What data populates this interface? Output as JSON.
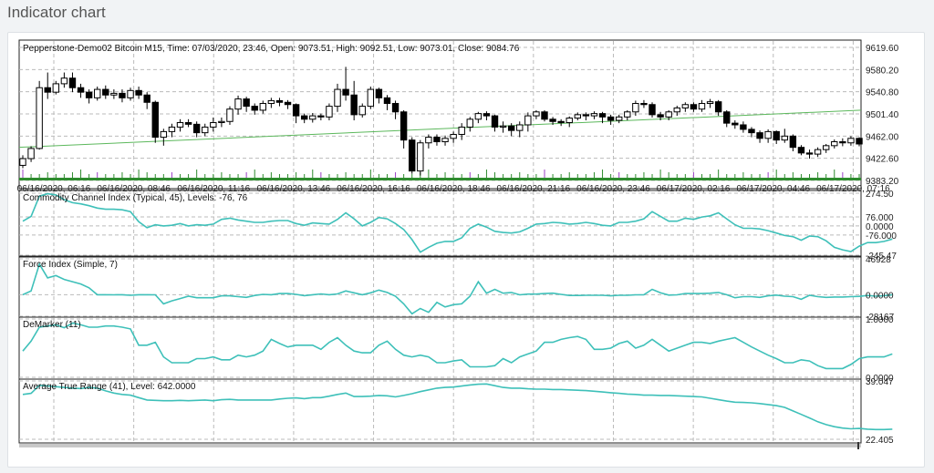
{
  "page_title": "Indicator chart",
  "chart_data": [
    {
      "type": "candlestick",
      "title": "Pepperstone-Demo02 Bitcoin M15, Time: 07/03/2020, 23:46, Open: 9073.51, High: 9092.51, Low: 9073.01, Close: 9084.76",
      "y_ticks": [
        "9619.60",
        "9580.20",
        "9540.80",
        "9501.40",
        "9462.00",
        "9422.60",
        "9383.20"
      ],
      "ylim": [
        9383.2,
        9619.6
      ],
      "x_tick_labels": [
        "06/16/2020, 06:16",
        "06/16/2020, 08:46",
        "06/16/2020, 11:16",
        "06/16/2020, 13:46",
        "06/16/2020, 16:16",
        "06/16/2020, 18:46",
        "06/16/2020, 21:16",
        "06/16/2020, 23:46",
        "06/17/2020, 02:16",
        "06/17/2020, 04:46",
        "06/17/2020, 07:16"
      ],
      "candles": [
        [
          9410,
          9422,
          9405,
          9428
        ],
        [
          9422,
          9440,
          9416,
          9444
        ],
        [
          9440,
          9548,
          9438,
          9560
        ],
        [
          9548,
          9540,
          9528,
          9575
        ],
        [
          9540,
          9555,
          9536,
          9560
        ],
        [
          9555,
          9565,
          9548,
          9575
        ],
        [
          9565,
          9548,
          9540,
          9575
        ],
        [
          9548,
          9540,
          9530,
          9555
        ],
        [
          9540,
          9530,
          9520,
          9545
        ],
        [
          9530,
          9545,
          9525,
          9550
        ],
        [
          9545,
          9535,
          9528,
          9552
        ],
        [
          9535,
          9538,
          9528,
          9545
        ],
        [
          9538,
          9530,
          9522,
          9545
        ],
        [
          9530,
          9543,
          9525,
          9548
        ],
        [
          9543,
          9535,
          9528,
          9550
        ],
        [
          9535,
          9522,
          9510,
          9540
        ],
        [
          9522,
          9460,
          9450,
          9525
        ],
        [
          9460,
          9470,
          9445,
          9475
        ],
        [
          9470,
          9478,
          9460,
          9484
        ],
        [
          9478,
          9486,
          9470,
          9492
        ],
        [
          9486,
          9483,
          9478,
          9492
        ],
        [
          9483,
          9468,
          9460,
          9488
        ],
        [
          9468,
          9478,
          9462,
          9484
        ],
        [
          9478,
          9486,
          9470,
          9495
        ],
        [
          9486,
          9488,
          9478,
          9495
        ],
        [
          9488,
          9510,
          9482,
          9515
        ],
        [
          9510,
          9528,
          9500,
          9534
        ],
        [
          9528,
          9515,
          9505,
          9532
        ],
        [
          9515,
          9508,
          9500,
          9520
        ],
        [
          9508,
          9520,
          9502,
          9525
        ],
        [
          9520,
          9525,
          9512,
          9530
        ],
        [
          9525,
          9522,
          9515,
          9530
        ],
        [
          9522,
          9518,
          9510,
          9526
        ],
        [
          9518,
          9498,
          9485,
          9520
        ],
        [
          9498,
          9492,
          9485,
          9502
        ],
        [
          9492,
          9498,
          9486,
          9503
        ],
        [
          9498,
          9496,
          9490,
          9502
        ],
        [
          9496,
          9515,
          9490,
          9520
        ],
        [
          9515,
          9545,
          9505,
          9555
        ],
        [
          9545,
          9535,
          9525,
          9585
        ],
        [
          9535,
          9500,
          9490,
          9560
        ],
        [
          9500,
          9515,
          9495,
          9520
        ],
        [
          9515,
          9545,
          9510,
          9550
        ],
        [
          9545,
          9530,
          9520,
          9548
        ],
        [
          9530,
          9520,
          9508,
          9535
        ],
        [
          9520,
          9505,
          9492,
          9525
        ],
        [
          9505,
          9455,
          9440,
          9508
        ],
        [
          9455,
          9400,
          9395,
          9460
        ],
        [
          9400,
          9450,
          9392,
          9455
        ],
        [
          9450,
          9460,
          9440,
          9465
        ],
        [
          9460,
          9452,
          9445,
          9465
        ],
        [
          9452,
          9458,
          9445,
          9463
        ],
        [
          9458,
          9465,
          9450,
          9470
        ],
        [
          9465,
          9478,
          9455,
          9485
        ],
        [
          9478,
          9492,
          9470,
          9496
        ],
        [
          9492,
          9502,
          9485,
          9505
        ],
        [
          9502,
          9498,
          9490,
          9506
        ],
        [
          9498,
          9478,
          9470,
          9500
        ],
        [
          9478,
          9480,
          9468,
          9488
        ],
        [
          9480,
          9472,
          9462,
          9485
        ],
        [
          9472,
          9482,
          9460,
          9488
        ],
        [
          9482,
          9498,
          9470,
          9504
        ],
        [
          9498,
          9505,
          9492,
          9508
        ],
        [
          9505,
          9492,
          9488,
          9508
        ],
        [
          9492,
          9488,
          9482,
          9496
        ],
        [
          9488,
          9486,
          9480,
          9492
        ],
        [
          9486,
          9494,
          9478,
          9497
        ],
        [
          9494,
          9500,
          9490,
          9504
        ],
        [
          9500,
          9498,
          9490,
          9504
        ],
        [
          9498,
          9502,
          9492,
          9506
        ],
        [
          9502,
          9496,
          9485,
          9505
        ],
        [
          9496,
          9490,
          9482,
          9500
        ],
        [
          9490,
          9496,
          9485,
          9500
        ],
        [
          9496,
          9505,
          9490,
          9508
        ],
        [
          9505,
          9520,
          9498,
          9525
        ],
        [
          9520,
          9518,
          9512,
          9526
        ],
        [
          9518,
          9500,
          9495,
          9522
        ],
        [
          9500,
          9496,
          9490,
          9505
        ],
        [
          9496,
          9505,
          9490,
          9508
        ],
        [
          9505,
          9512,
          9498,
          9516
        ],
        [
          9512,
          9518,
          9505,
          9522
        ],
        [
          9518,
          9510,
          9505,
          9522
        ],
        [
          9510,
          9520,
          9505,
          9526
        ],
        [
          9520,
          9523,
          9512,
          9528
        ],
        [
          9523,
          9505,
          9498,
          9526
        ],
        [
          9505,
          9485,
          9478,
          9508
        ],
        [
          9485,
          9482,
          9475,
          9490
        ],
        [
          9482,
          9474,
          9468,
          9488
        ],
        [
          9474,
          9468,
          9460,
          9478
        ],
        [
          9468,
          9458,
          9450,
          9472
        ],
        [
          9458,
          9470,
          9450,
          9474
        ],
        [
          9470,
          9455,
          9448,
          9472
        ],
        [
          9455,
          9462,
          9450,
          9475
        ],
        [
          9462,
          9442,
          9435,
          9465
        ],
        [
          9442,
          9432,
          9428,
          9446
        ],
        [
          9432,
          9430,
          9422,
          9438
        ],
        [
          9430,
          9438,
          9425,
          9442
        ],
        [
          9438,
          9445,
          9432,
          9448
        ],
        [
          9445,
          9452,
          9440,
          9456
        ],
        [
          9452,
          9450,
          9444,
          9458
        ],
        [
          9450,
          9458,
          9445,
          9462
        ],
        [
          9458,
          9448,
          9444,
          9460
        ]
      ],
      "trendline": [
        9442,
        9508
      ],
      "trendline_color": "#5cb85c",
      "volume_color_up": "#2e8b2e",
      "volume_spike_color": "#9b3fc6"
    },
    {
      "type": "line",
      "title": "Commodity Channel Index (Typical, 45), Levels: -76, 76",
      "y_ticks": [
        "274.50",
        "76.000",
        "0.0000",
        "-76.000",
        "-245.47"
      ],
      "ylim": [
        -245.47,
        274.5
      ],
      "levels": [
        -76,
        76
      ],
      "color": "#3ec0b9",
      "values": [
        40,
        80,
        250,
        270,
        260,
        220,
        195,
        185,
        170,
        150,
        140,
        140,
        135,
        120,
        35,
        -15,
        10,
        0,
        5,
        20,
        0,
        10,
        5,
        15,
        55,
        65,
        50,
        40,
        30,
        30,
        40,
        45,
        45,
        20,
        5,
        25,
        20,
        15,
        55,
        110,
        60,
        0,
        30,
        70,
        60,
        20,
        -30,
        -115,
        -220,
        -180,
        -145,
        -130,
        -130,
        -100,
        -20,
        15,
        -10,
        -45,
        -55,
        -60,
        -50,
        -20,
        15,
        20,
        30,
        25,
        15,
        20,
        30,
        20,
        5,
        0,
        30,
        30,
        40,
        60,
        120,
        80,
        40,
        40,
        65,
        55,
        75,
        85,
        110,
        60,
        10,
        -20,
        -20,
        -25,
        -40,
        -60,
        -80,
        -90,
        -120,
        -85,
        -90,
        -125,
        -180,
        -200,
        -215,
        -170,
        -140,
        -140,
        -130,
        -110
      ]
    },
    {
      "type": "line",
      "title": "Force Index (Simple, 7)",
      "y_ticks": [
        "46928",
        "0.0000",
        "-28167"
      ],
      "ylim": [
        -28167,
        46928
      ],
      "color": "#3ec0b9",
      "values": [
        0,
        5000,
        40000,
        22000,
        25000,
        20000,
        17000,
        14000,
        9000,
        0,
        0,
        -200,
        0,
        -800,
        0,
        0,
        -100,
        -12000,
        -8000,
        -5000,
        -2000,
        -4000,
        -4000,
        -4000,
        -1500,
        -1500,
        -2500,
        -3500,
        -1000,
        500,
        0,
        1500,
        1500,
        500,
        -1200,
        0,
        1000,
        0,
        1000,
        5000,
        2500,
        0,
        2500,
        6000,
        3000,
        -2000,
        -12000,
        -25000,
        -18000,
        -23000,
        -10000,
        -16000,
        -13000,
        -12000,
        -2000,
        17000,
        2000,
        7000,
        2000,
        3000,
        -200,
        800,
        800,
        1500,
        2000,
        500,
        -1000,
        -1000,
        -800,
        -800,
        -800,
        -1500,
        -800,
        -800,
        -200,
        0,
        7000,
        2500,
        -500,
        -200,
        1500,
        1500,
        1500,
        2000,
        3000,
        0,
        -4000,
        -2500,
        -2500,
        -3500,
        -1500,
        -500,
        -2000,
        -2500,
        -6000,
        -800,
        -2500,
        -3500,
        -3000,
        -3000,
        -2500,
        -2200,
        -1000,
        -2000,
        -1200,
        0
      ]
    },
    {
      "type": "line",
      "title": "DeMarker (11)",
      "y_ticks": [
        "1.0000",
        "0.0000"
      ],
      "ylim": [
        0,
        1
      ],
      "color": "#3ec0b9",
      "values": [
        0.45,
        0.62,
        0.86,
        0.88,
        0.9,
        0.85,
        0.93,
        0.9,
        0.86,
        0.86,
        0.88,
        0.88,
        0.86,
        0.83,
        0.55,
        0.55,
        0.6,
        0.35,
        0.25,
        0.25,
        0.25,
        0.32,
        0.32,
        0.35,
        0.3,
        0.3,
        0.38,
        0.35,
        0.38,
        0.45,
        0.65,
        0.58,
        0.52,
        0.55,
        0.55,
        0.55,
        0.48,
        0.6,
        0.68,
        0.55,
        0.45,
        0.42,
        0.42,
        0.55,
        0.62,
        0.48,
        0.38,
        0.35,
        0.38,
        0.35,
        0.25,
        0.25,
        0.28,
        0.3,
        0.18,
        0.18,
        0.18,
        0.2,
        0.32,
        0.25,
        0.35,
        0.4,
        0.45,
        0.6,
        0.6,
        0.65,
        0.68,
        0.7,
        0.65,
        0.48,
        0.48,
        0.5,
        0.58,
        0.62,
        0.5,
        0.55,
        0.65,
        0.55,
        0.45,
        0.5,
        0.55,
        0.6,
        0.6,
        0.58,
        0.62,
        0.65,
        0.68,
        0.6,
        0.52,
        0.45,
        0.38,
        0.32,
        0.25,
        0.25,
        0.3,
        0.28,
        0.2,
        0.15,
        0.15,
        0.15,
        0.22,
        0.32,
        0.35,
        0.35,
        0.35,
        0.4
      ]
    },
    {
      "type": "line",
      "title": "Average True Range (41), Level: 642.0000",
      "y_ticks": [
        "39.047",
        "22.405"
      ],
      "ylim": [
        22.405,
        39.047
      ],
      "color": "#3ec0b9",
      "values": [
        35.2,
        35.5,
        37.8,
        37.6,
        37.4,
        37.2,
        37.0,
        36.9,
        37.2,
        37.0,
        36.2,
        35.6,
        35.2,
        35.0,
        34.3,
        33.6,
        33.5,
        33.4,
        33.4,
        33.5,
        33.4,
        33.5,
        33.6,
        33.4,
        33.7,
        33.8,
        33.6,
        33.6,
        33.6,
        33.6,
        33.6,
        33.9,
        34.1,
        34.2,
        34.0,
        34.3,
        34.3,
        34.7,
        35.2,
        35.6,
        34.6,
        34.6,
        34.7,
        34.9,
        34.8,
        34.5,
        34.9,
        35.4,
        36.0,
        36.5,
        37.0,
        37.2,
        37.3,
        37.6,
        37.9,
        38.1,
        38.2,
        37.7,
        37.2,
        37.0,
        37.0,
        36.8,
        36.7,
        36.7,
        36.6,
        36.6,
        36.5,
        36.4,
        36.3,
        36.1,
        35.9,
        35.7,
        35.5,
        35.3,
        35.2,
        35.0,
        35.0,
        34.9,
        34.9,
        34.8,
        34.7,
        34.6,
        34.5,
        34.1,
        33.7,
        33.3,
        33.0,
        32.9,
        32.8,
        32.6,
        32.3,
        32.0,
        31.5,
        30.5,
        29.5,
        28.5,
        27.4,
        26.6,
        26.0,
        25.6,
        25.4,
        25.5,
        25.3,
        25.2,
        25.2,
        25.3
      ]
    }
  ]
}
